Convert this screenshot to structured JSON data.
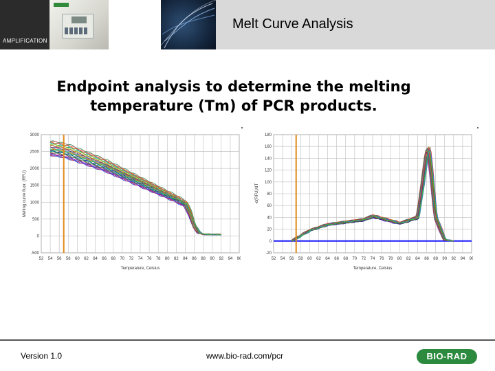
{
  "header": {
    "title": "Melt Curve Analysis",
    "section": "AMPLIFICATION"
  },
  "subtitle_line1": "Endpoint analysis to determine the melting",
  "subtitle_line2": "temperature (Tm) of PCR products.",
  "footer": {
    "version": "Version 1.0",
    "url": "www.bio-rad.com/pcr",
    "logo_text": "BIO-RAD"
  },
  "colors": {
    "header_band": "#d9d9d9",
    "orange_marker": "#e08a1a",
    "baseline_blue": "#1a1aff",
    "logo_green": "#2b8a3e"
  },
  "chart_data": [
    {
      "type": "line",
      "title": "",
      "xlabel": "Temperature, Celsius",
      "ylabel": "Melting curve fluor. (RFU)",
      "x_ticks": [
        "52",
        "54",
        "56",
        "58",
        "60",
        "62",
        "64",
        "66",
        "68",
        "70",
        "72",
        "74",
        "76",
        "78",
        "80",
        "82",
        "84",
        "86",
        "88",
        "90",
        "92",
        "94",
        "96"
      ],
      "y_ticks": [
        "-500",
        "0",
        "500",
        "1000",
        "1500",
        "2000",
        "2500",
        "3000"
      ],
      "xlim": [
        52,
        96
      ],
      "ylim": [
        -500,
        3000
      ],
      "marker_line_x": 57,
      "curve_shape": {
        "x": [
          54,
          56,
          58,
          62,
          66,
          70,
          74,
          78,
          82,
          84,
          85,
          86,
          87,
          88,
          92
        ],
        "y": [
          2600,
          2560,
          2500,
          2300,
          2100,
          1850,
          1600,
          1350,
          1100,
          950,
          700,
          300,
          100,
          50,
          40
        ]
      },
      "series_count": 24
    },
    {
      "type": "line",
      "title": "",
      "xlabel": "Temperature, Celsius",
      "ylabel": "-d(RFU)/dT",
      "x_ticks": [
        "52",
        "54",
        "56",
        "58",
        "60",
        "62",
        "64",
        "66",
        "68",
        "70",
        "72",
        "74",
        "76",
        "78",
        "80",
        "82",
        "84",
        "86",
        "88",
        "90",
        "92",
        "94",
        "96"
      ],
      "y_ticks": [
        "-20",
        "0",
        "20",
        "40",
        "60",
        "80",
        "100",
        "120",
        "140",
        "160",
        "180"
      ],
      "xlim": [
        52,
        96
      ],
      "ylim": [
        -20,
        180
      ],
      "marker_line_x": 57,
      "baseline_y": 0,
      "curve_shape": {
        "x": [
          56,
          60,
          64,
          68,
          72,
          74,
          76,
          80,
          84,
          85,
          86,
          86.5,
          87,
          88,
          90,
          92
        ],
        "y": [
          0,
          18,
          28,
          32,
          36,
          42,
          38,
          30,
          40,
          90,
          148,
          152,
          120,
          40,
          2,
          0
        ]
      },
      "series_count": 24
    }
  ]
}
